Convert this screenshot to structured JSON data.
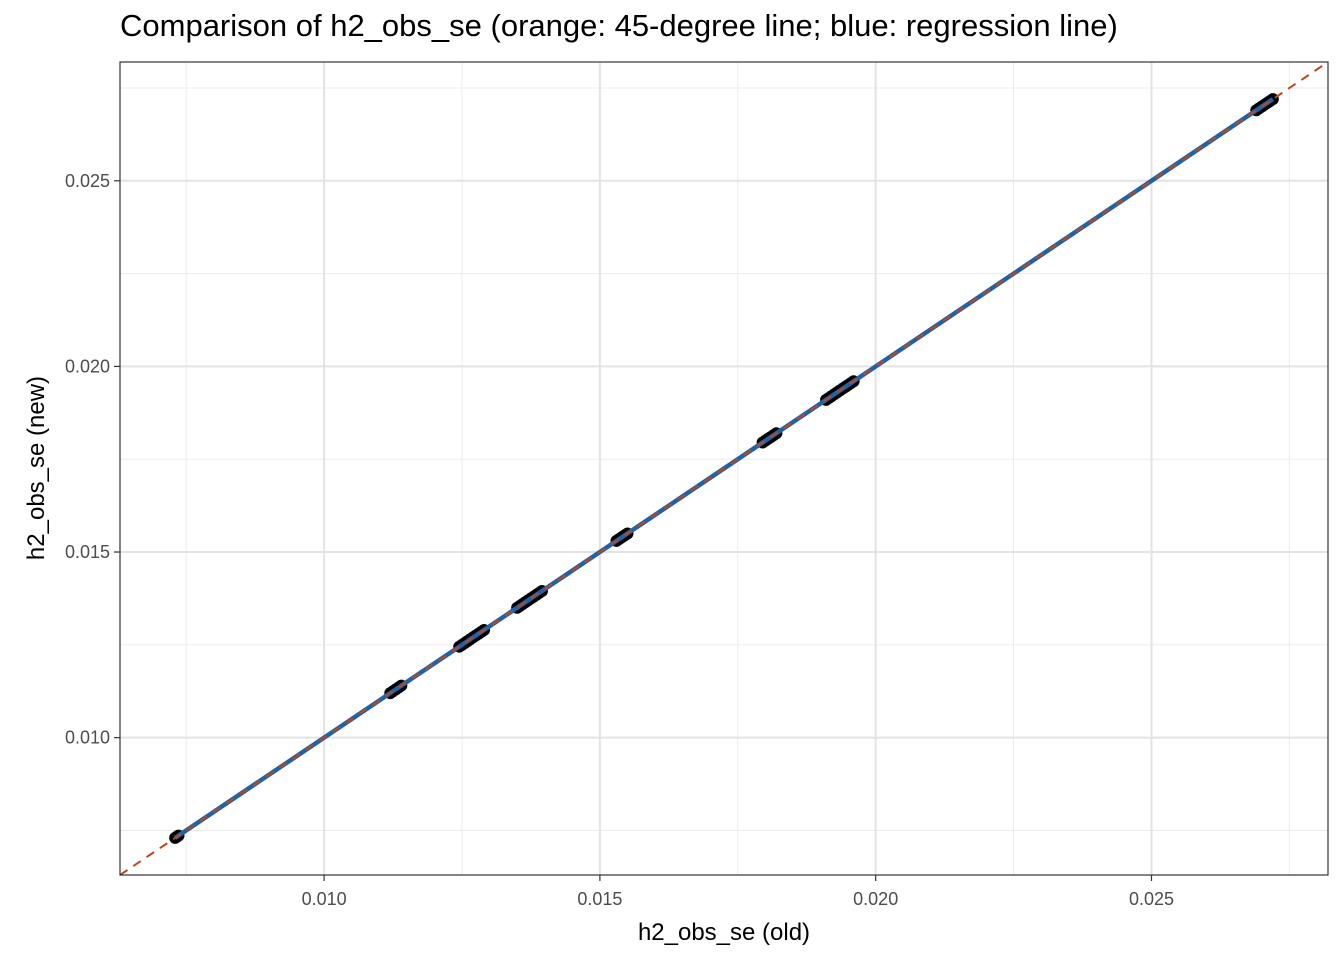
{
  "chart_data": {
    "type": "scatter",
    "title": "Comparison of h2_obs_se (orange: 45-degree line; blue: regression line)",
    "xlabel": "h2_obs_se (old)",
    "ylabel": "h2_obs_se (new)",
    "xlim": [
      0.0063,
      0.0282
    ],
    "ylim": [
      0.0063,
      0.0282
    ],
    "x_ticks": [
      0.01,
      0.015,
      0.02,
      0.025
    ],
    "y_ticks": [
      0.01,
      0.015,
      0.02,
      0.025
    ],
    "x_tick_labels": [
      "0.010",
      "0.015",
      "0.020",
      "0.025"
    ],
    "y_tick_labels": [
      "0.010",
      "0.015",
      "0.020",
      "0.025"
    ],
    "grid": true,
    "reference_line": {
      "slope": 1,
      "intercept": 0,
      "style": "dashed",
      "color": "#c0461a"
    },
    "regression_line": {
      "slope": 1,
      "intercept": 0,
      "x_range": [
        0.0073,
        0.0272
      ],
      "color": "#1f62a8"
    },
    "points": [
      [
        0.0073,
        0.0073
      ],
      [
        0.00733,
        0.00733
      ],
      [
        0.00736,
        0.00736
      ],
      [
        0.0112,
        0.0112
      ],
      [
        0.01125,
        0.01125
      ],
      [
        0.0113,
        0.0113
      ],
      [
        0.01135,
        0.01135
      ],
      [
        0.0114,
        0.0114
      ],
      [
        0.01245,
        0.01245
      ],
      [
        0.0125,
        0.0125
      ],
      [
        0.01255,
        0.01255
      ],
      [
        0.0126,
        0.0126
      ],
      [
        0.01265,
        0.01265
      ],
      [
        0.0127,
        0.0127
      ],
      [
        0.01275,
        0.01275
      ],
      [
        0.0128,
        0.0128
      ],
      [
        0.01285,
        0.01285
      ],
      [
        0.0129,
        0.0129
      ],
      [
        0.0135,
        0.0135
      ],
      [
        0.01355,
        0.01355
      ],
      [
        0.0136,
        0.0136
      ],
      [
        0.01365,
        0.01365
      ],
      [
        0.0137,
        0.0137
      ],
      [
        0.01375,
        0.01375
      ],
      [
        0.0138,
        0.0138
      ],
      [
        0.01385,
        0.01385
      ],
      [
        0.0139,
        0.0139
      ],
      [
        0.01395,
        0.01395
      ],
      [
        0.0153,
        0.0153
      ],
      [
        0.01535,
        0.01535
      ],
      [
        0.0154,
        0.0154
      ],
      [
        0.01545,
        0.01545
      ],
      [
        0.0155,
        0.0155
      ],
      [
        0.01795,
        0.01795
      ],
      [
        0.018,
        0.018
      ],
      [
        0.01805,
        0.01805
      ],
      [
        0.0181,
        0.0181
      ],
      [
        0.01815,
        0.01815
      ],
      [
        0.0182,
        0.0182
      ],
      [
        0.0191,
        0.0191
      ],
      [
        0.01915,
        0.01915
      ],
      [
        0.0192,
        0.0192
      ],
      [
        0.01925,
        0.01925
      ],
      [
        0.0193,
        0.0193
      ],
      [
        0.01935,
        0.01935
      ],
      [
        0.0194,
        0.0194
      ],
      [
        0.01945,
        0.01945
      ],
      [
        0.0195,
        0.0195
      ],
      [
        0.01955,
        0.01955
      ],
      [
        0.0196,
        0.0196
      ],
      [
        0.0269,
        0.0269
      ],
      [
        0.02695,
        0.02695
      ],
      [
        0.027,
        0.027
      ],
      [
        0.02705,
        0.02705
      ],
      [
        0.0271,
        0.0271
      ],
      [
        0.02715,
        0.02715
      ],
      [
        0.0272,
        0.0272
      ]
    ]
  }
}
